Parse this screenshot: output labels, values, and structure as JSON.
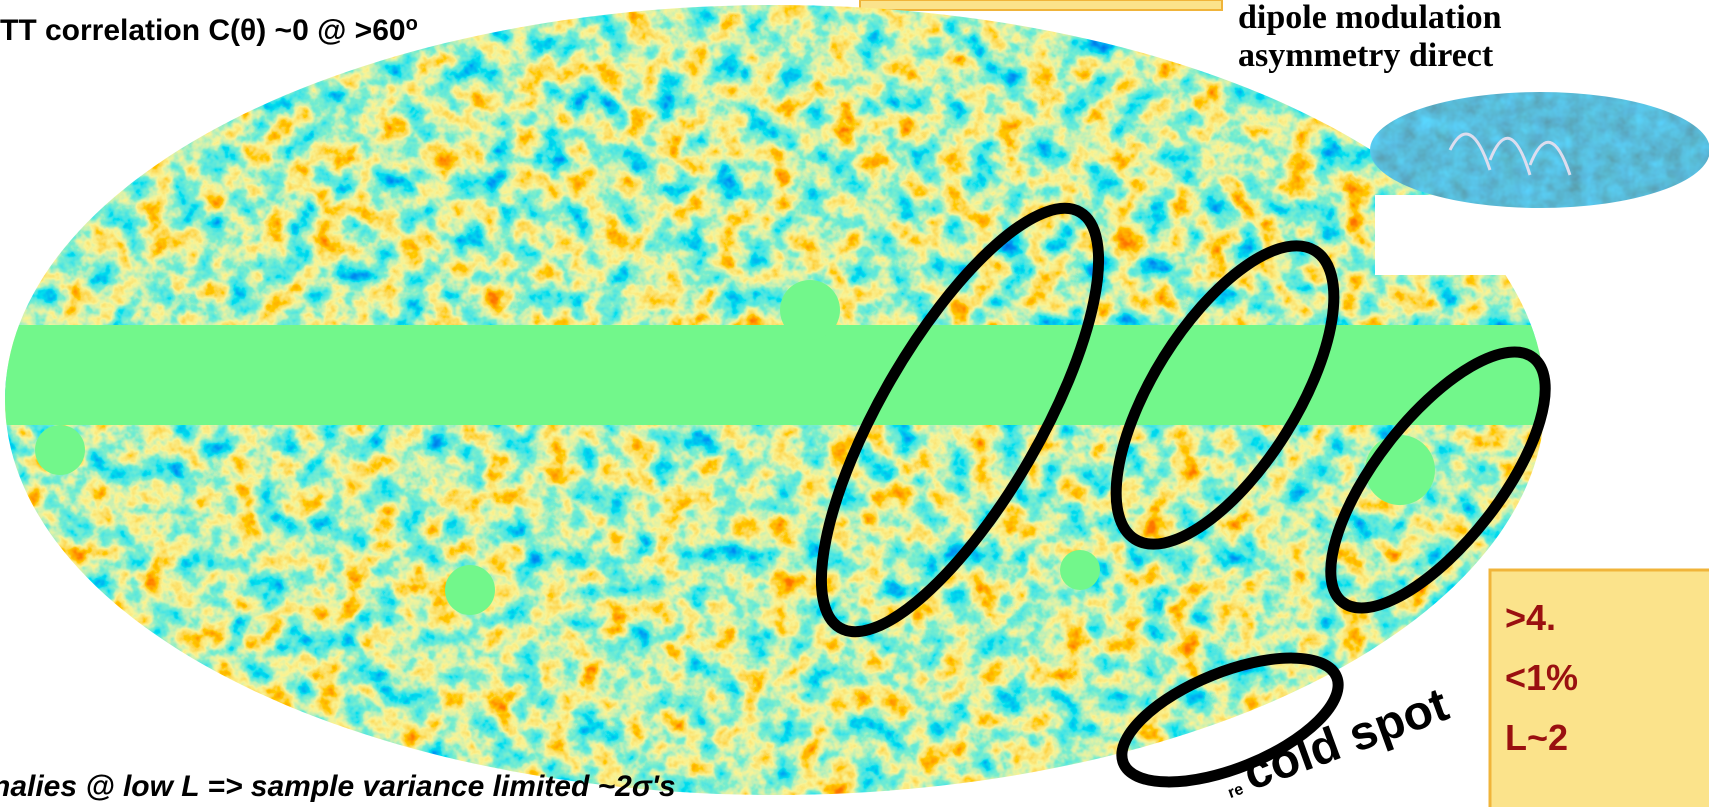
{
  "slide": {
    "top_left": "TT correlation C(θ) ~0 @ >60",
    "top_left_sup": "o",
    "top_right_lines": [
      "dipole modulation",
      "asymmetry direct"
    ],
    "bottom_left": "nalies @ low L => sample variance limited ~2σ's",
    "cold_spot_prefix": "re",
    "cold_spot": "cold spot",
    "box_lines": [
      ">4.",
      "<1%",
      "L~2"
    ]
  }
}
